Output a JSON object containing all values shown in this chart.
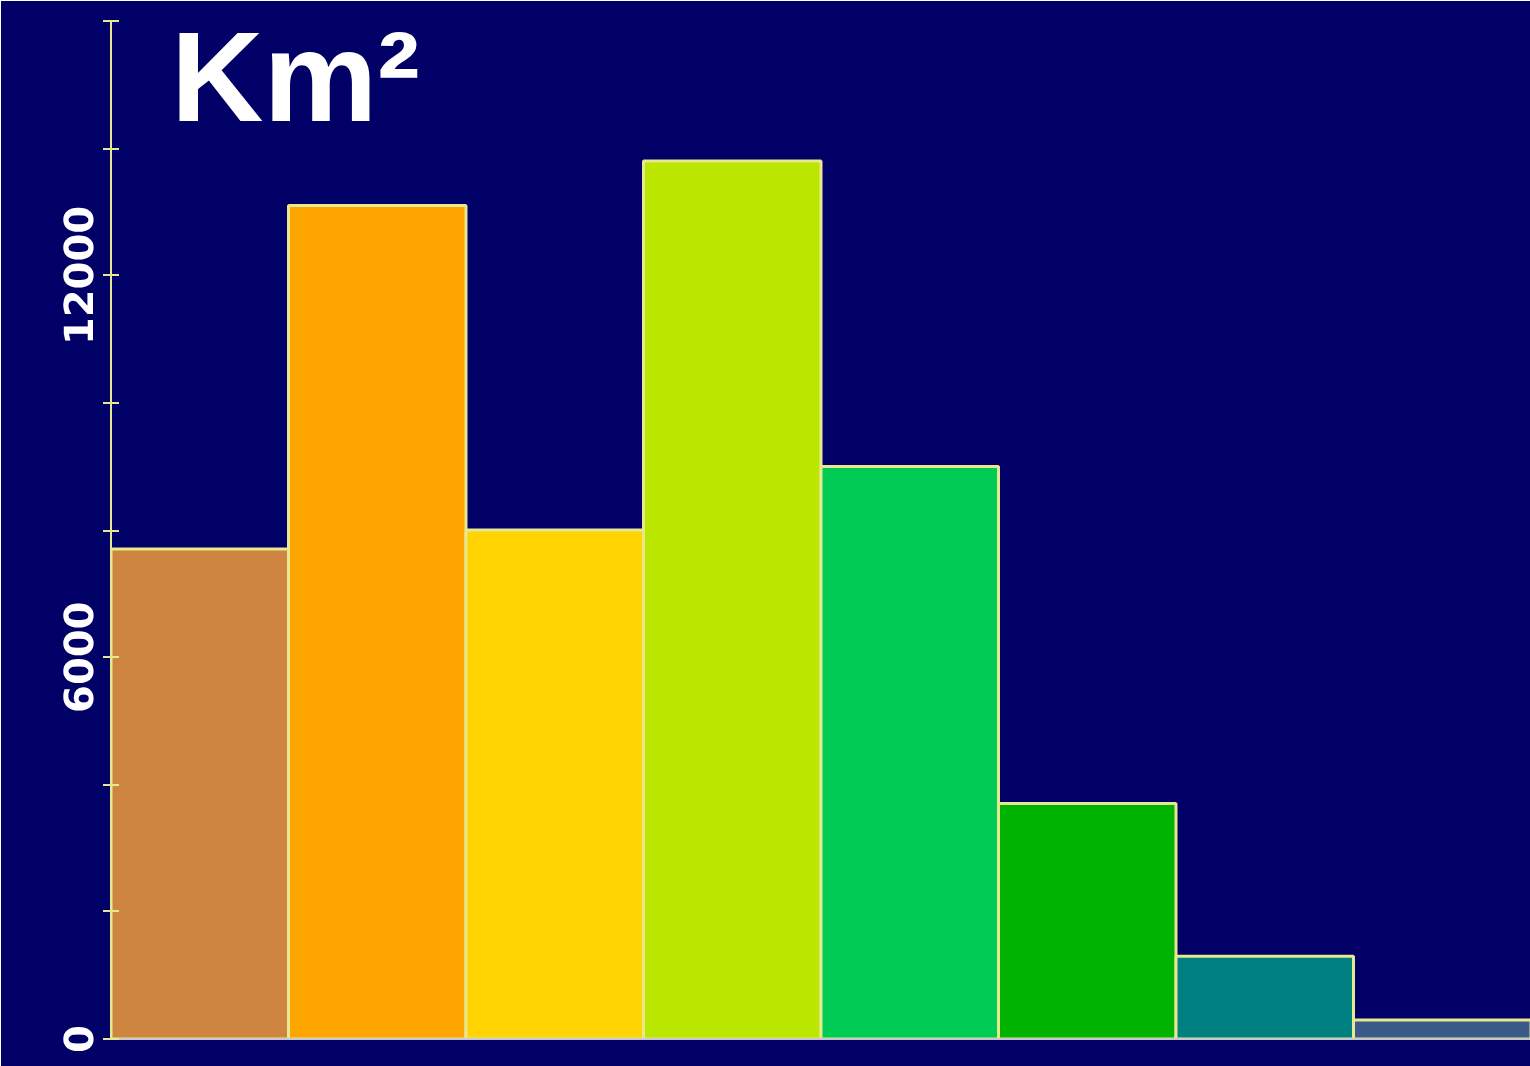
{
  "chart_data": {
    "type": "bar",
    "title": "Km²",
    "categories": [
      null,
      null,
      null,
      null,
      null,
      null,
      null,
      null
    ],
    "values": [
      7700,
      13100,
      8000,
      13800,
      9000,
      3700,
      1300,
      300
    ],
    "colors": [
      "#cd853f",
      "#ffa500",
      "#ffd400",
      "#bbe600",
      "#00cc55",
      "#00b300",
      "#008080",
      "#3a5a8a"
    ],
    "ylim": [
      0,
      16000
    ],
    "yticks": [
      0,
      {
        "value": 2000,
        "label": null
      },
      {
        "value": 4000,
        "label": null
      },
      6000,
      {
        "value": 8000,
        "label": null
      },
      {
        "value": 10000,
        "label": null
      },
      12000,
      {
        "value": 14000,
        "label": null
      },
      {
        "value": 16000,
        "label": null
      }
    ],
    "grid": false
  }
}
